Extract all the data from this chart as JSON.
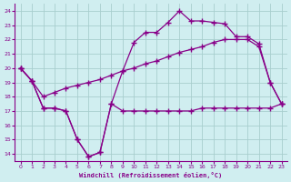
{
  "xlabel": "Windchill (Refroidissement éolien,°C)",
  "xlim": [
    -0.5,
    23.5
  ],
  "ylim": [
    13.5,
    24.5
  ],
  "xticks": [
    0,
    1,
    2,
    3,
    4,
    5,
    6,
    7,
    8,
    9,
    10,
    11,
    12,
    13,
    14,
    15,
    16,
    17,
    18,
    19,
    20,
    21,
    22,
    23
  ],
  "yticks": [
    14,
    15,
    16,
    17,
    18,
    19,
    20,
    21,
    22,
    23,
    24
  ],
  "bg_color": "#d0eef0",
  "line_color": "#880088",
  "grid_color": "#a8cece",
  "curve1_x": [
    0,
    1,
    2,
    3,
    4,
    5,
    6,
    7,
    8,
    9,
    10,
    11,
    12,
    13,
    14,
    15,
    16,
    17,
    18,
    19,
    20,
    21,
    22,
    23
  ],
  "curve1_y": [
    20.0,
    19.1,
    17.2,
    17.2,
    17.0,
    15.0,
    13.8,
    14.1,
    17.5,
    17.0,
    17.0,
    17.0,
    17.0,
    17.0,
    17.0,
    17.0,
    17.2,
    17.2,
    17.2,
    17.2,
    17.2,
    17.2,
    17.2,
    17.5
  ],
  "curve2_x": [
    0,
    1,
    2,
    3,
    4,
    5,
    6,
    7,
    8,
    9,
    10,
    11,
    12,
    13,
    14,
    15,
    16,
    17,
    18,
    19,
    20,
    21,
    22,
    23
  ],
  "curve2_y": [
    20.0,
    19.1,
    18.0,
    18.3,
    18.6,
    18.8,
    19.0,
    19.2,
    19.5,
    19.8,
    20.0,
    20.3,
    20.5,
    20.8,
    21.1,
    21.3,
    21.5,
    21.8,
    22.0,
    22.0,
    22.0,
    21.5,
    19.0,
    17.5
  ],
  "curve3_x": [
    0,
    1,
    2,
    3,
    4,
    5,
    6,
    7,
    8,
    9,
    10,
    11,
    12,
    13,
    14,
    15,
    16,
    17,
    18,
    19,
    20,
    21,
    22,
    23
  ],
  "curve3_y": [
    20.0,
    19.1,
    17.2,
    17.2,
    17.0,
    15.0,
    13.8,
    14.1,
    17.5,
    19.8,
    21.8,
    22.5,
    22.5,
    23.2,
    24.0,
    23.3,
    23.3,
    23.2,
    23.1,
    22.2,
    22.2,
    21.7,
    19.0,
    17.5
  ],
  "marker": "+",
  "markersize": 4,
  "linewidth": 0.9
}
